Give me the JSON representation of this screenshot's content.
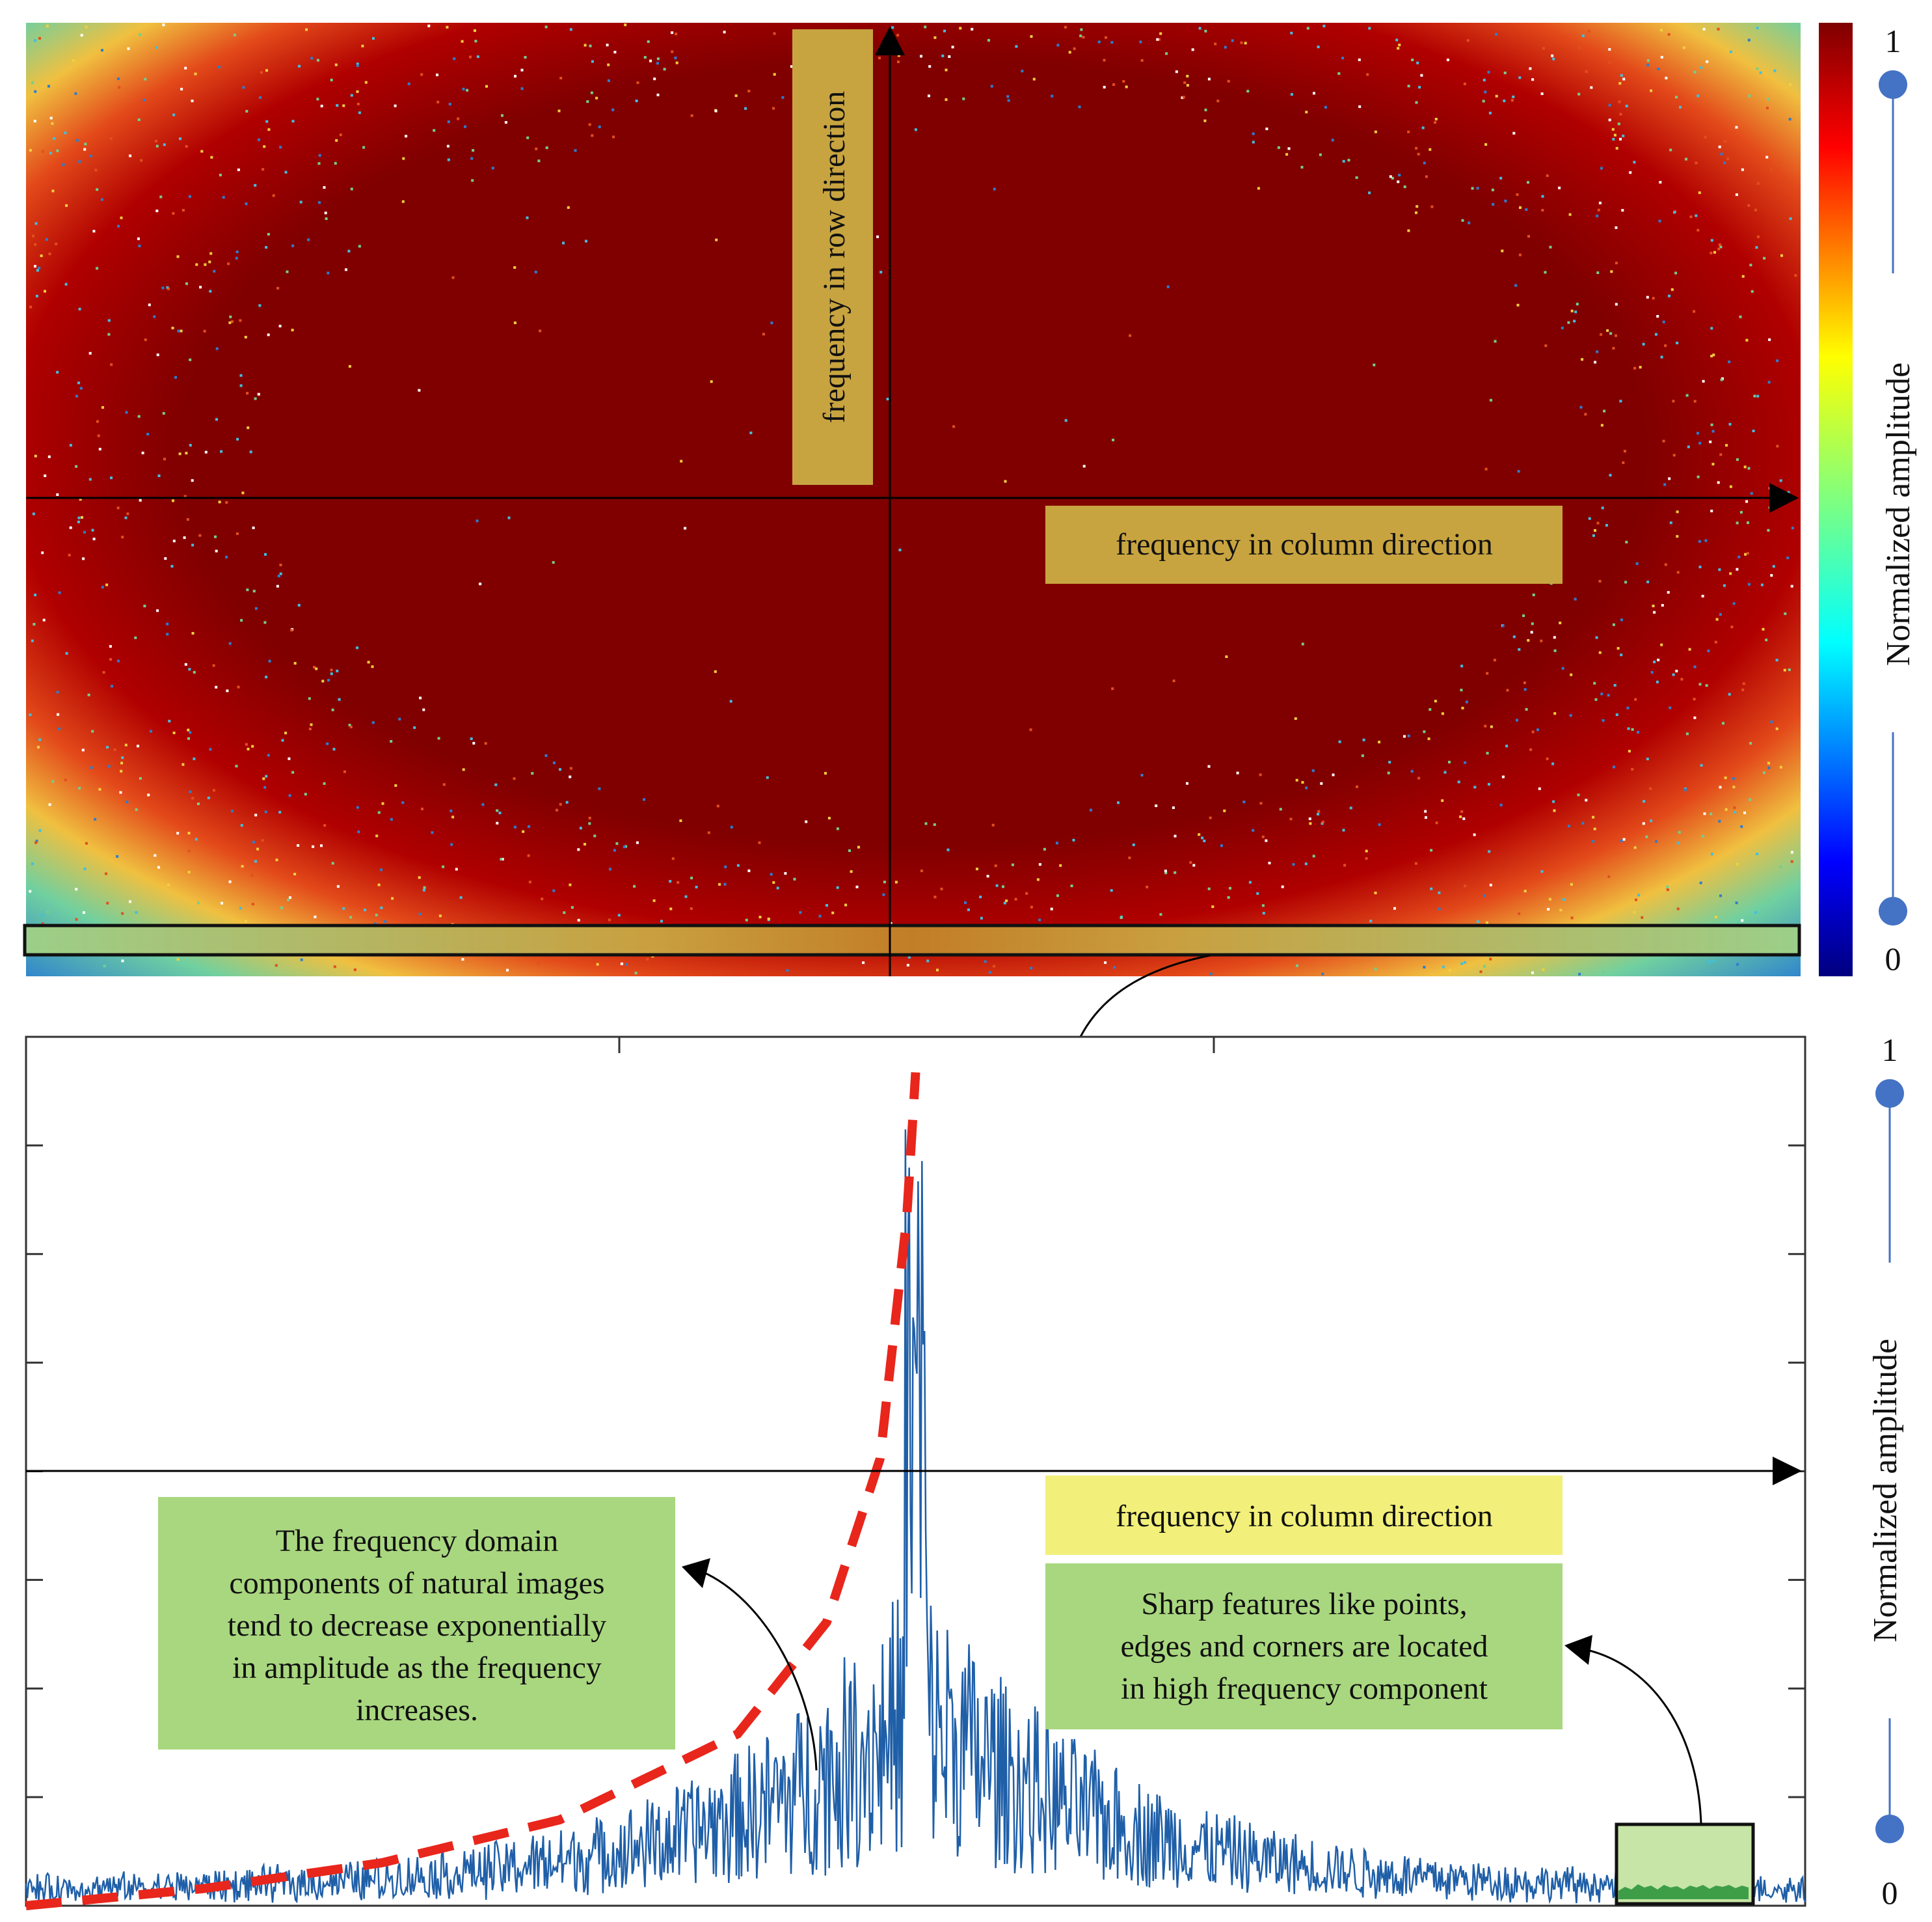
{
  "chart_data": [
    {
      "type": "heatmap",
      "title": "",
      "xlabel": "frequency in column direction",
      "ylabel": "frequency in row direction",
      "colorbar": {
        "label": "Normalized amplitude",
        "min": 0,
        "max": 1,
        "ticks": [
          "1",
          "0"
        ],
        "colormap": "jet"
      },
      "description_values": {
        "center_value": 1,
        "corner_value": 0.3
      },
      "highlight_band": "bottom row strip (frequency in column direction)"
    },
    {
      "type": "line",
      "title": "",
      "xlabel": "frequency in column direction",
      "ylabel": "Normalized amplitude",
      "ylim": [
        0,
        1
      ],
      "yticks": [
        "1",
        "0"
      ],
      "series": [
        {
          "name": "",
          "color": "#1f5fa8",
          "x_range": [
            -1,
            1
          ],
          "peak": 0.98,
          "peak_x": 0
        },
        {
          "name": "",
          "color": "#e8261c",
          "style": "dashed",
          "x": [
            -1,
            -0.8,
            -0.6,
            -0.4,
            -0.2,
            -0.1,
            -0.04,
            -0.01,
            0
          ],
          "y": [
            0.0,
            0.02,
            0.05,
            0.1,
            0.2,
            0.33,
            0.52,
            0.8,
            0.97
          ]
        }
      ],
      "annotations": [
        {
          "id": "exp",
          "text_lines": [
            "The frequency domain",
            "components of natural images",
            "tend to decrease exponentially",
            "in amplitude as the frequency",
            "increases."
          ]
        },
        {
          "id": "sharp",
          "text_lines": [
            "Sharp features like points,",
            "edges and corners are located",
            "in high frequency component"
          ]
        },
        {
          "id": "axis",
          "text": "frequency in column direction"
        }
      ]
    }
  ],
  "colors": {
    "heat_red": "#800000",
    "label_gold": "#c8a440",
    "note_green": "#a9d77f",
    "label_yellow": "#f2f07a",
    "slider_blue": "#4472c4"
  }
}
